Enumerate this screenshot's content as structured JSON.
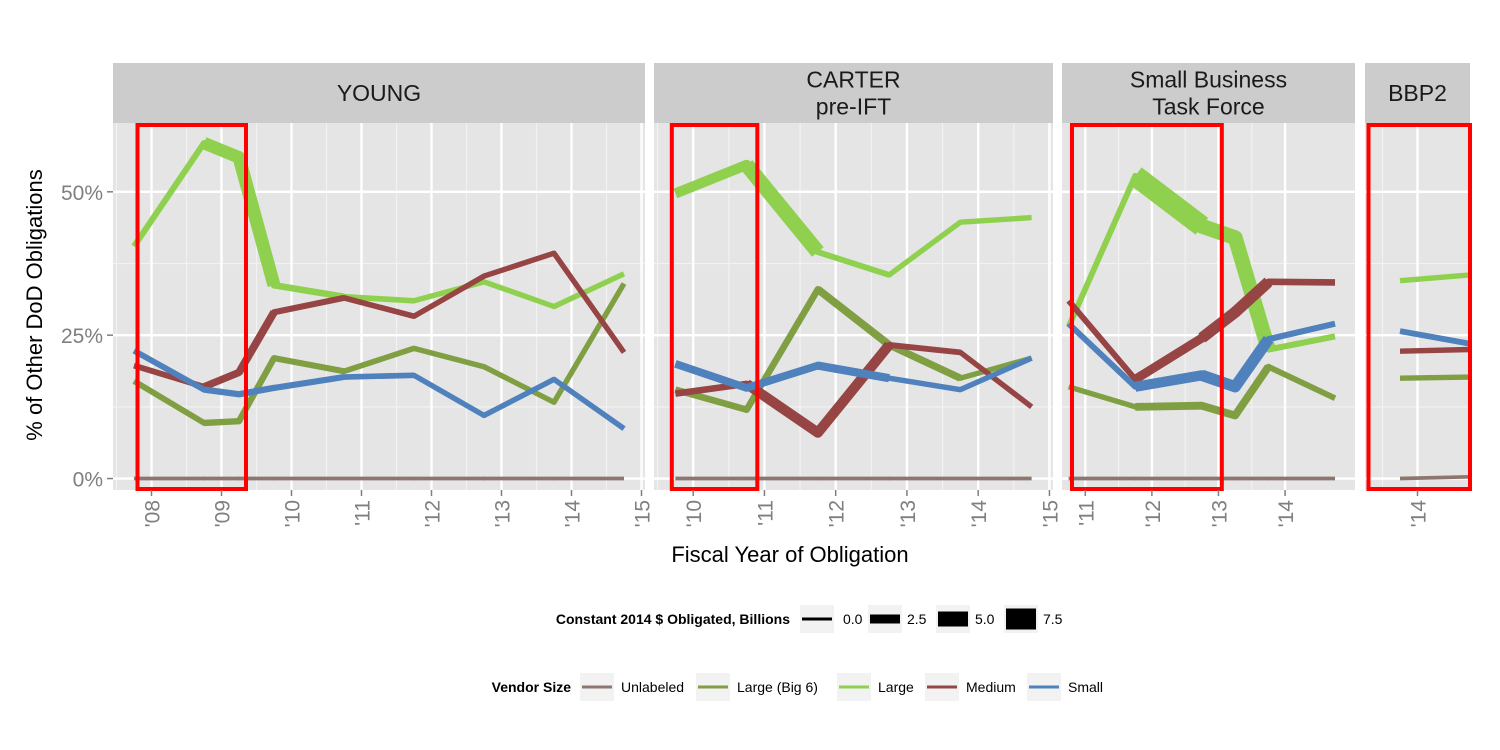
{
  "chart_data": {
    "type": "line",
    "xlabel": "Fiscal Year of Obligation",
    "ylabel": "% of  Other DoD  Obligations",
    "ylim": [
      -0.02,
      0.62
    ],
    "y_ticks": [
      {
        "value": 0,
        "label": "0%"
      },
      {
        "value": 0.25,
        "label": "25%"
      },
      {
        "value": 0.5,
        "label": "50%"
      }
    ],
    "grid": true,
    "line_width_legend": {
      "title": "Constant 2014 $ Obligated, Billions",
      "items": [
        {
          "label": "0.0",
          "value": 0
        },
        {
          "label": "2.5",
          "value": 2.5
        },
        {
          "label": "5.0",
          "value": 5
        },
        {
          "label": "7.5",
          "value": 7.5
        }
      ]
    },
    "color_legend": {
      "title": "Vendor Size",
      "items": [
        {
          "label": "Unlabeled",
          "color": "#8e7670"
        },
        {
          "label": "Large (Big 6)",
          "color": "#7f9f42"
        },
        {
          "label": "Large",
          "color": "#8fd14f"
        },
        {
          "label": "Medium",
          "color": "#964544"
        },
        {
          "label": "Small",
          "color": "#4f81bd"
        }
      ]
    },
    "panels": [
      {
        "strip": [
          "YOUNG"
        ],
        "xlim": [
          2007.45,
          2015.05
        ],
        "x_ticks": [
          {
            "value": 2008,
            "label": "'08"
          },
          {
            "value": 2009,
            "label": "'09"
          },
          {
            "value": 2010,
            "label": "'10"
          },
          {
            "value": 2011,
            "label": "'11"
          },
          {
            "value": 2012,
            "label": "'12"
          },
          {
            "value": 2013,
            "label": "'13"
          },
          {
            "value": 2014,
            "label": "'14"
          },
          {
            "value": 2015,
            "label": "'15"
          }
        ],
        "highlight": [
          2007.8,
          2009.35
        ],
        "series": [
          {
            "name": "Unlabeled",
            "x": [
              2007.75,
              2008.75,
              2009.25,
              2009.75,
              2010.75,
              2011.75,
              2012.75,
              2013.75,
              2014.75
            ],
            "y": [
              0,
              0,
              0,
              0,
              0,
              0,
              0,
              0,
              0
            ],
            "width": [
              0.3,
              0.3,
              0.3,
              0.3,
              0.3,
              0.3,
              0.3,
              0.3,
              0.3
            ]
          },
          {
            "name": "Large (Big 6)",
            "x": [
              2007.75,
              2008.75,
              2009.25,
              2009.75,
              2010.75,
              2011.75,
              2012.75,
              2013.75,
              2014.75
            ],
            "y": [
              0.17,
              0.097,
              0.1,
              0.21,
              0.187,
              0.227,
              0.195,
              0.133,
              0.34
            ],
            "width": [
              1.2,
              1.4,
              1.4,
              1.3,
              1.1,
              1.0,
              1.0,
              1.0,
              1.0
            ]
          },
          {
            "name": "Large",
            "x": [
              2007.75,
              2008.75,
              2009.25,
              2009.75,
              2010.75,
              2011.75,
              2012.75,
              2013.75,
              2014.75
            ],
            "y": [
              0.405,
              0.585,
              0.56,
              0.337,
              0.317,
              0.31,
              0.343,
              0.3,
              0.357
            ],
            "width": [
              1.3,
              4.0,
              4.2,
              1.5,
              1.1,
              1.0,
              1.0,
              1.0,
              1.0
            ]
          },
          {
            "name": "Medium",
            "x": [
              2007.75,
              2008.75,
              2009.25,
              2009.75,
              2010.75,
              2011.75,
              2012.75,
              2013.75,
              2014.75
            ],
            "y": [
              0.197,
              0.16,
              0.185,
              0.29,
              0.315,
              0.283,
              0.353,
              0.393,
              0.22
            ],
            "width": [
              1.2,
              1.8,
              2.0,
              1.3,
              1.1,
              1.0,
              1.0,
              1.0,
              1.0
            ]
          },
          {
            "name": "Small",
            "x": [
              2007.75,
              2008.75,
              2009.25,
              2009.75,
              2010.75,
              2011.75,
              2012.75,
              2013.75,
              2014.75
            ],
            "y": [
              0.223,
              0.155,
              0.147,
              0.158,
              0.177,
              0.18,
              0.11,
              0.173,
              0.087
            ],
            "width": [
              1.2,
              1.4,
              1.4,
              1.3,
              1.1,
              1.0,
              1.0,
              1.0,
              1.0
            ]
          }
        ]
      },
      {
        "strip": [
          "CARTER",
          "pre-IFT"
        ],
        "xlim": [
          2009.45,
          2015.05
        ],
        "x_ticks": [
          {
            "value": 2010,
            "label": "'10"
          },
          {
            "value": 2011,
            "label": "'11"
          },
          {
            "value": 2012,
            "label": "'12"
          },
          {
            "value": 2013,
            "label": "'13"
          },
          {
            "value": 2014,
            "label": "'14"
          },
          {
            "value": 2015,
            "label": "'15"
          }
        ],
        "highlight": [
          2009.7,
          2010.9
        ],
        "series": [
          {
            "name": "Unlabeled",
            "x": [
              2009.75,
              2010.75,
              2011.75,
              2012.75,
              2013.75,
              2014.75
            ],
            "y": [
              0,
              0,
              0,
              0,
              0,
              0
            ],
            "width": [
              0.3,
              0.3,
              0.3,
              0.3,
              0.3,
              0.3
            ]
          },
          {
            "name": "Large (Big 6)",
            "x": [
              2009.75,
              2010.75,
              2011.75,
              2012.75,
              2013.75,
              2014.75
            ],
            "y": [
              0.155,
              0.12,
              0.33,
              0.233,
              0.175,
              0.21
            ],
            "width": [
              1.5,
              1.5,
              2.0,
              1.8,
              1.0,
              1.0
            ]
          },
          {
            "name": "Large",
            "x": [
              2009.75,
              2010.75,
              2011.75,
              2012.75,
              2013.75,
              2014.75
            ],
            "y": [
              0.497,
              0.547,
              0.395,
              0.355,
              0.447,
              0.455
            ],
            "width": [
              3.0,
              5.0,
              1.2,
              1.0,
              1.0,
              1.0
            ]
          },
          {
            "name": "Medium",
            "x": [
              2009.75,
              2010.75,
              2011.75,
              2012.75,
              2013.75,
              2014.75
            ],
            "y": [
              0.148,
              0.165,
              0.08,
              0.233,
              0.22,
              0.125
            ],
            "width": [
              1.5,
              3.0,
              3.0,
              1.2,
              1.0,
              1.0
            ]
          },
          {
            "name": "Small",
            "x": [
              2009.75,
              2010.75,
              2011.75,
              2012.75,
              2013.75,
              2014.75
            ],
            "y": [
              0.2,
              0.158,
              0.197,
              0.175,
              0.155,
              0.21
            ],
            "width": [
              2.0,
              2.0,
              2.2,
              1.0,
              1.0,
              1.0
            ]
          }
        ]
      },
      {
        "strip": [
          "Small Business",
          "Task Force"
        ],
        "xlim": [
          2010.65,
          2015.05
        ],
        "x_ticks": [
          {
            "value": 2011,
            "label": "'11"
          },
          {
            "value": 2012,
            "label": "'12"
          },
          {
            "value": 2013,
            "label": "'13"
          },
          {
            "value": 2014,
            "label": "'14"
          }
        ],
        "highlight": [
          2010.8,
          2013.05
        ],
        "series": [
          {
            "name": "Unlabeled",
            "x": [
              2010.75,
              2011.75,
              2012.75,
              2013.25,
              2013.75,
              2014.75
            ],
            "y": [
              0,
              0,
              0,
              0,
              0,
              0
            ],
            "width": [
              0.3,
              0.3,
              0.3,
              0.3,
              0.3,
              0.3
            ]
          },
          {
            "name": "Large (Big 6)",
            "x": [
              2010.75,
              2011.75,
              2012.75,
              2013.25,
              2013.75,
              2014.75
            ],
            "y": [
              0.16,
              0.125,
              0.127,
              0.11,
              0.195,
              0.14
            ],
            "width": [
              1.0,
              2.0,
              2.0,
              2.0,
              1.2,
              1.0
            ]
          },
          {
            "name": "Large",
            "x": [
              2010.75,
              2011.75,
              2012.75,
              2013.25,
              2013.75,
              2014.75
            ],
            "y": [
              0.265,
              0.528,
              0.44,
              0.42,
              0.225,
              0.248
            ],
            "width": [
              1.2,
              7.5,
              5.0,
              5.0,
              1.3,
              1.0
            ]
          },
          {
            "name": "Medium",
            "x": [
              2010.75,
              2011.75,
              2012.75,
              2013.25,
              2013.75,
              2014.75
            ],
            "y": [
              0.31,
              0.173,
              0.245,
              0.29,
              0.343,
              0.342
            ],
            "width": [
              1.2,
              2.5,
              3.5,
              3.5,
              1.5,
              1.0
            ]
          },
          {
            "name": "Small",
            "x": [
              2010.75,
              2011.75,
              2012.75,
              2013.25,
              2013.75,
              2014.75
            ],
            "y": [
              0.27,
              0.16,
              0.18,
              0.16,
              0.243,
              0.27
            ],
            "width": [
              1.2,
              3.0,
              3.5,
              3.5,
              1.3,
              1.0
            ]
          }
        ]
      },
      {
        "strip": [
          "BBP2"
        ],
        "xlim": [
          2013.25,
          2014.75
        ],
        "x_ticks": [
          {
            "value": 2014,
            "label": "'14"
          }
        ],
        "highlight": [
          2013.3,
          2014.75
        ],
        "series": [
          {
            "name": "Unlabeled",
            "x": [
              2013.75,
              2014.75
            ],
            "y": [
              0,
              0.003
            ],
            "width": [
              0.3,
              0.3
            ]
          },
          {
            "name": "Large (Big 6)",
            "x": [
              2013.75,
              2014.75
            ],
            "y": [
              0.175,
              0.177
            ],
            "width": [
              1.0,
              1.0
            ]
          },
          {
            "name": "Large",
            "x": [
              2013.75,
              2014.75
            ],
            "y": [
              0.345,
              0.355
            ],
            "width": [
              1.0,
              1.0
            ]
          },
          {
            "name": "Medium",
            "x": [
              2013.75,
              2014.75
            ],
            "y": [
              0.222,
              0.225
            ],
            "width": [
              1.0,
              1.0
            ]
          },
          {
            "name": "Small",
            "x": [
              2013.75,
              2014.75
            ],
            "y": [
              0.257,
              0.235
            ],
            "width": [
              1.2,
              1.2
            ]
          }
        ]
      }
    ]
  }
}
